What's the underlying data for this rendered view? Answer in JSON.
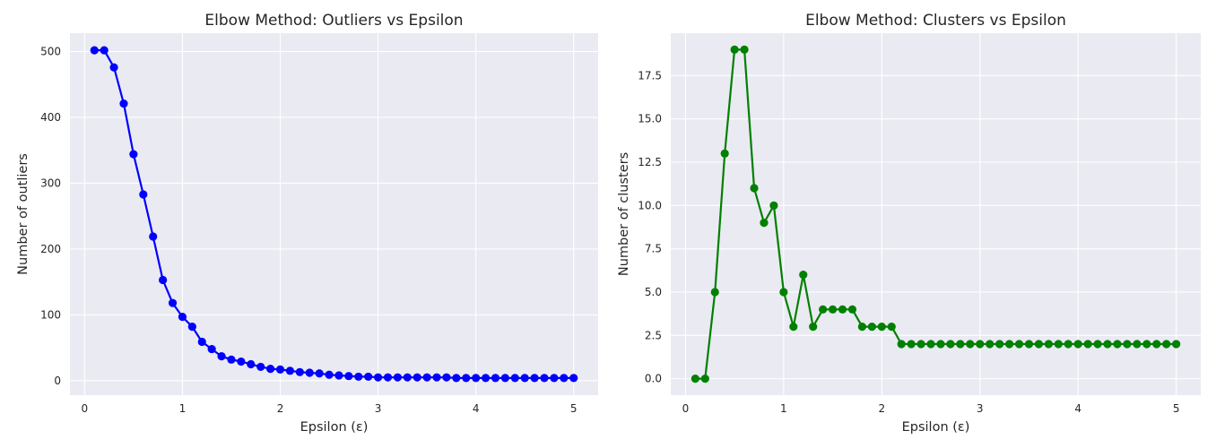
{
  "chart_data": [
    {
      "type": "line",
      "title": "Elbow Method: Outliers vs Epsilon",
      "xlabel": "Epsilon (ε)",
      "ylabel": "Number of outliers",
      "xlim": [
        -0.15,
        5.25
      ],
      "ylim": [
        -22,
        528
      ],
      "xticks": [
        0,
        1,
        2,
        3,
        4,
        5
      ],
      "xtick_labels": [
        "0",
        "1",
        "2",
        "3",
        "4",
        "5"
      ],
      "yticks": [
        0,
        100,
        200,
        300,
        400,
        500
      ],
      "ytick_labels": [
        "0",
        "100",
        "200",
        "300",
        "400",
        "500"
      ],
      "grid": true,
      "marker": "circle",
      "color": "#0000ff",
      "x": [
        0.1,
        0.2,
        0.3,
        0.4,
        0.5,
        0.6,
        0.7,
        0.8,
        0.9,
        1.0,
        1.1,
        1.2,
        1.3,
        1.4,
        1.5,
        1.6,
        1.7,
        1.8,
        1.9,
        2.0,
        2.1,
        2.2,
        2.3,
        2.4,
        2.5,
        2.6,
        2.7,
        2.8,
        2.9,
        3.0,
        3.1,
        3.2,
        3.3,
        3.4,
        3.5,
        3.6,
        3.7,
        3.8,
        3.9,
        4.0,
        4.1,
        4.2,
        4.3,
        4.4,
        4.5,
        4.6,
        4.7,
        4.8,
        4.9,
        5.0
      ],
      "values": [
        502,
        502,
        476,
        421,
        344,
        283,
        219,
        153,
        118,
        97,
        82,
        59,
        48,
        37,
        32,
        29,
        25,
        21,
        18,
        17,
        15,
        13,
        12,
        11,
        9,
        8,
        7,
        6,
        6,
        5,
        5,
        5,
        5,
        5,
        5,
        5,
        5,
        4,
        4,
        4,
        4,
        4,
        4,
        4,
        4,
        4,
        4,
        4,
        4,
        4
      ]
    },
    {
      "type": "line",
      "title": "Elbow Method: Clusters vs Epsilon",
      "xlabel": "Epsilon (ε)",
      "ylabel": "Number of clusters",
      "xlim": [
        -0.15,
        5.25
      ],
      "ylim": [
        -0.95,
        19.95
      ],
      "xticks": [
        0,
        1,
        2,
        3,
        4,
        5
      ],
      "xtick_labels": [
        "0",
        "1",
        "2",
        "3",
        "4",
        "5"
      ],
      "yticks": [
        0,
        2.5,
        5,
        7.5,
        10,
        12.5,
        15,
        17.5
      ],
      "ytick_labels": [
        "0.0",
        "2.5",
        "5.0",
        "7.5",
        "10.0",
        "12.5",
        "15.0",
        "17.5"
      ],
      "grid": true,
      "marker": "circle",
      "color": "#008000",
      "x": [
        0.1,
        0.2,
        0.3,
        0.4,
        0.5,
        0.6,
        0.7,
        0.8,
        0.9,
        1.0,
        1.1,
        1.2,
        1.3,
        1.4,
        1.5,
        1.6,
        1.7,
        1.8,
        1.9,
        2.0,
        2.1,
        2.2,
        2.3,
        2.4,
        2.5,
        2.6,
        2.7,
        2.8,
        2.9,
        3.0,
        3.1,
        3.2,
        3.3,
        3.4,
        3.5,
        3.6,
        3.7,
        3.8,
        3.9,
        4.0,
        4.1,
        4.2,
        4.3,
        4.4,
        4.5,
        4.6,
        4.7,
        4.8,
        4.9,
        5.0
      ],
      "values": [
        0,
        0,
        5,
        13,
        19,
        19,
        11,
        9,
        10,
        5,
        3,
        6,
        3,
        4,
        4,
        4,
        4,
        3,
        3,
        3,
        3,
        2,
        2,
        2,
        2,
        2,
        2,
        2,
        2,
        2,
        2,
        2,
        2,
        2,
        2,
        2,
        2,
        2,
        2,
        2,
        2,
        2,
        2,
        2,
        2,
        2,
        2,
        2,
        2,
        2
      ]
    }
  ]
}
